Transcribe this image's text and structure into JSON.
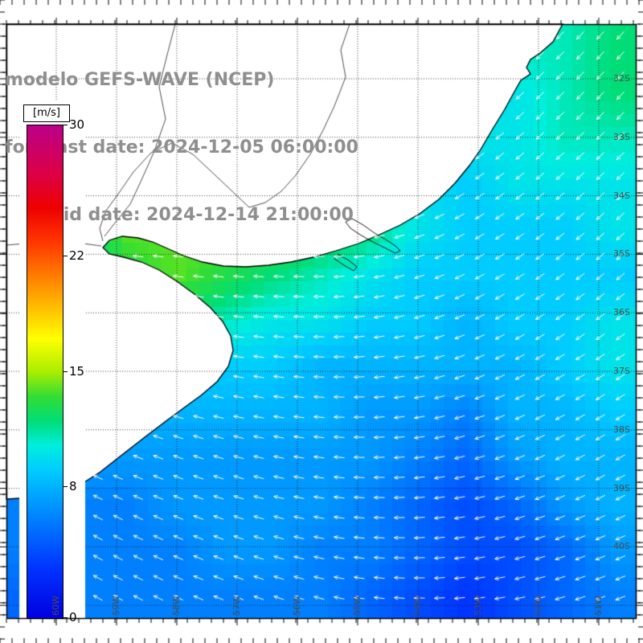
{
  "header": {
    "line1": "modelo GEFS-WAVE (NCEP)",
    "line2": "forecast date: 2024-12-05 06:00:00",
    "line3": "valid date: 2024-12-14 21:00:00"
  },
  "chart_data": {
    "type": "heatmap",
    "title": "modelo GEFS-WAVE (NCEP)",
    "units": "m/s",
    "colorbar": {
      "label": "[m/s]",
      "min": 0,
      "max": 30,
      "ticks": [
        30,
        22,
        15,
        8,
        0
      ],
      "stops": [
        {
          "v": 0,
          "c": "#0000e0"
        },
        {
          "v": 3,
          "c": "#0033ff"
        },
        {
          "v": 5,
          "c": "#0066ff"
        },
        {
          "v": 7,
          "c": "#0099ff"
        },
        {
          "v": 9,
          "c": "#00ccff"
        },
        {
          "v": 10.5,
          "c": "#00eedd"
        },
        {
          "v": 12,
          "c": "#00dd77"
        },
        {
          "v": 13.5,
          "c": "#33dd33"
        },
        {
          "v": 15,
          "c": "#aaee00"
        },
        {
          "v": 17,
          "c": "#ffff00"
        },
        {
          "v": 19,
          "c": "#ffbb00"
        },
        {
          "v": 21,
          "c": "#ff7700"
        },
        {
          "v": 23,
          "c": "#ff3300"
        },
        {
          "v": 25,
          "c": "#ee0000"
        },
        {
          "v": 27,
          "c": "#dd0044"
        },
        {
          "v": 30,
          "c": "#bb0088"
        }
      ]
    },
    "lat_labels": [
      "32S",
      "33S",
      "34S",
      "35S",
      "36S",
      "37S",
      "38S",
      "39S",
      "40S"
    ],
    "lon_labels": [
      "60W",
      "59W",
      "58W",
      "57W",
      "56W",
      "55W",
      "54W",
      "53W",
      "52W",
      "51W"
    ],
    "field": {
      "cols": 13,
      "rows": 13,
      "speed_ms": [
        [
          9,
          9,
          9,
          9,
          9,
          9,
          9,
          9,
          10,
          10,
          11,
          11,
          12
        ],
        [
          9,
          9,
          9,
          9,
          9,
          9,
          9,
          9,
          10,
          10,
          10,
          11,
          12
        ],
        [
          9,
          9,
          9,
          9,
          9,
          10,
          10,
          9,
          9,
          10,
          10,
          11,
          11
        ],
        [
          10,
          10,
          11,
          12,
          13,
          14,
          13,
          11,
          10,
          9,
          10,
          10,
          10
        ],
        [
          11,
          12,
          14,
          14,
          14,
          14,
          13,
          12,
          10,
          9,
          9,
          9,
          10
        ],
        [
          10,
          11,
          13,
          14,
          13,
          12,
          11,
          10,
          9,
          9,
          9,
          9,
          9
        ],
        [
          9,
          10,
          11,
          12,
          11,
          10,
          10,
          9,
          9,
          8,
          9,
          9,
          10
        ],
        [
          8,
          9,
          9,
          9,
          9,
          9,
          8,
          8,
          8,
          8,
          8,
          9,
          10
        ],
        [
          7,
          7,
          8,
          8,
          8,
          8,
          8,
          7,
          7,
          6,
          8,
          8,
          9
        ],
        [
          6,
          7,
          7,
          7,
          7,
          7,
          7,
          7,
          6,
          5,
          7,
          8,
          8
        ],
        [
          6,
          6,
          6,
          7,
          7,
          7,
          7,
          6,
          5,
          4,
          5,
          7,
          8
        ],
        [
          6,
          6,
          6,
          6,
          7,
          7,
          6,
          6,
          5,
          4,
          4,
          5,
          7
        ],
        [
          5,
          6,
          6,
          6,
          6,
          6,
          6,
          5,
          4,
          3,
          4,
          5,
          6
        ]
      ],
      "dir_deg_screen": [
        [
          160,
          160,
          160,
          160,
          158,
          156,
          154,
          150,
          146,
          142,
          138,
          135,
          133
        ],
        [
          162,
          162,
          162,
          160,
          158,
          156,
          154,
          150,
          146,
          142,
          138,
          135,
          133
        ],
        [
          166,
          166,
          165,
          164,
          162,
          160,
          157,
          152,
          148,
          143,
          140,
          137,
          135
        ],
        [
          174,
          176,
          179,
          181,
          182,
          180,
          174,
          165,
          155,
          148,
          143,
          140,
          137
        ],
        [
          180,
          182,
          185,
          186,
          185,
          182,
          177,
          169,
          160,
          151,
          146,
          142,
          139
        ],
        [
          185,
          186,
          188,
          188,
          186,
          183,
          179,
          171,
          162,
          153,
          148,
          144,
          141
        ],
        [
          190,
          190,
          191,
          190,
          188,
          185,
          180,
          172,
          165,
          156,
          150,
          147,
          144
        ],
        [
          195,
          195,
          194,
          192,
          190,
          187,
          182,
          175,
          168,
          159,
          153,
          150,
          147
        ],
        [
          200,
          199,
          198,
          195,
          192,
          189,
          184,
          177,
          170,
          162,
          156,
          152,
          149
        ],
        [
          204,
          203,
          201,
          199,
          196,
          192,
          187,
          180,
          172,
          165,
          158,
          154,
          151
        ],
        [
          207,
          206,
          204,
          201,
          198,
          194,
          190,
          182,
          175,
          168,
          162,
          157,
          154
        ],
        [
          209,
          208,
          206,
          203,
          200,
          196,
          192,
          185,
          178,
          170,
          165,
          160,
          157
        ],
        [
          211,
          209,
          207,
          204,
          201,
          198,
          194,
          188,
          181,
          173,
          168,
          163,
          159
        ]
      ]
    }
  }
}
